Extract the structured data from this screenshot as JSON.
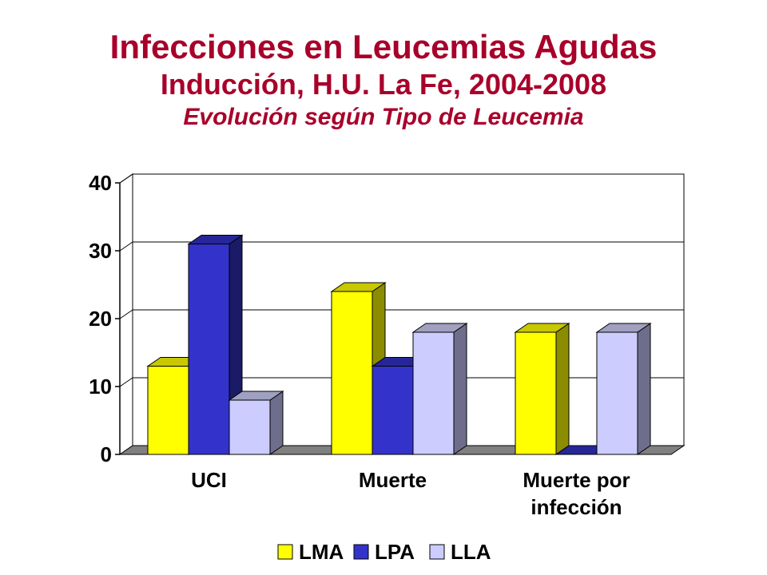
{
  "title": "Infecciones en Leucemias Agudas",
  "subtitle": "Inducción, H.U. La Fe, 2004-2008",
  "subtitle2": "Evolución según Tipo de Leucemia",
  "chart_data": {
    "type": "bar",
    "categories": [
      [
        "UCI"
      ],
      [
        "Muerte"
      ],
      [
        "Muerte por",
        "infección"
      ]
    ],
    "series": [
      {
        "name": "LMA",
        "values": [
          13,
          24,
          18
        ],
        "color": "#ffff00",
        "side": "#8c8c00",
        "top": "#c8c800"
      },
      {
        "name": "LPA",
        "values": [
          31,
          13,
          0
        ],
        "color": "#3333cc",
        "side": "#1a1a66",
        "top": "#262699"
      },
      {
        "name": "LLA",
        "values": [
          8,
          18,
          18
        ],
        "color": "#ccccff",
        "side": "#6e6e8c",
        "top": "#a0a0c0"
      }
    ],
    "ylim": [
      0,
      40
    ],
    "yticks": [
      0,
      10,
      20,
      30,
      40
    ],
    "grid": true,
    "legend": "bottom"
  }
}
